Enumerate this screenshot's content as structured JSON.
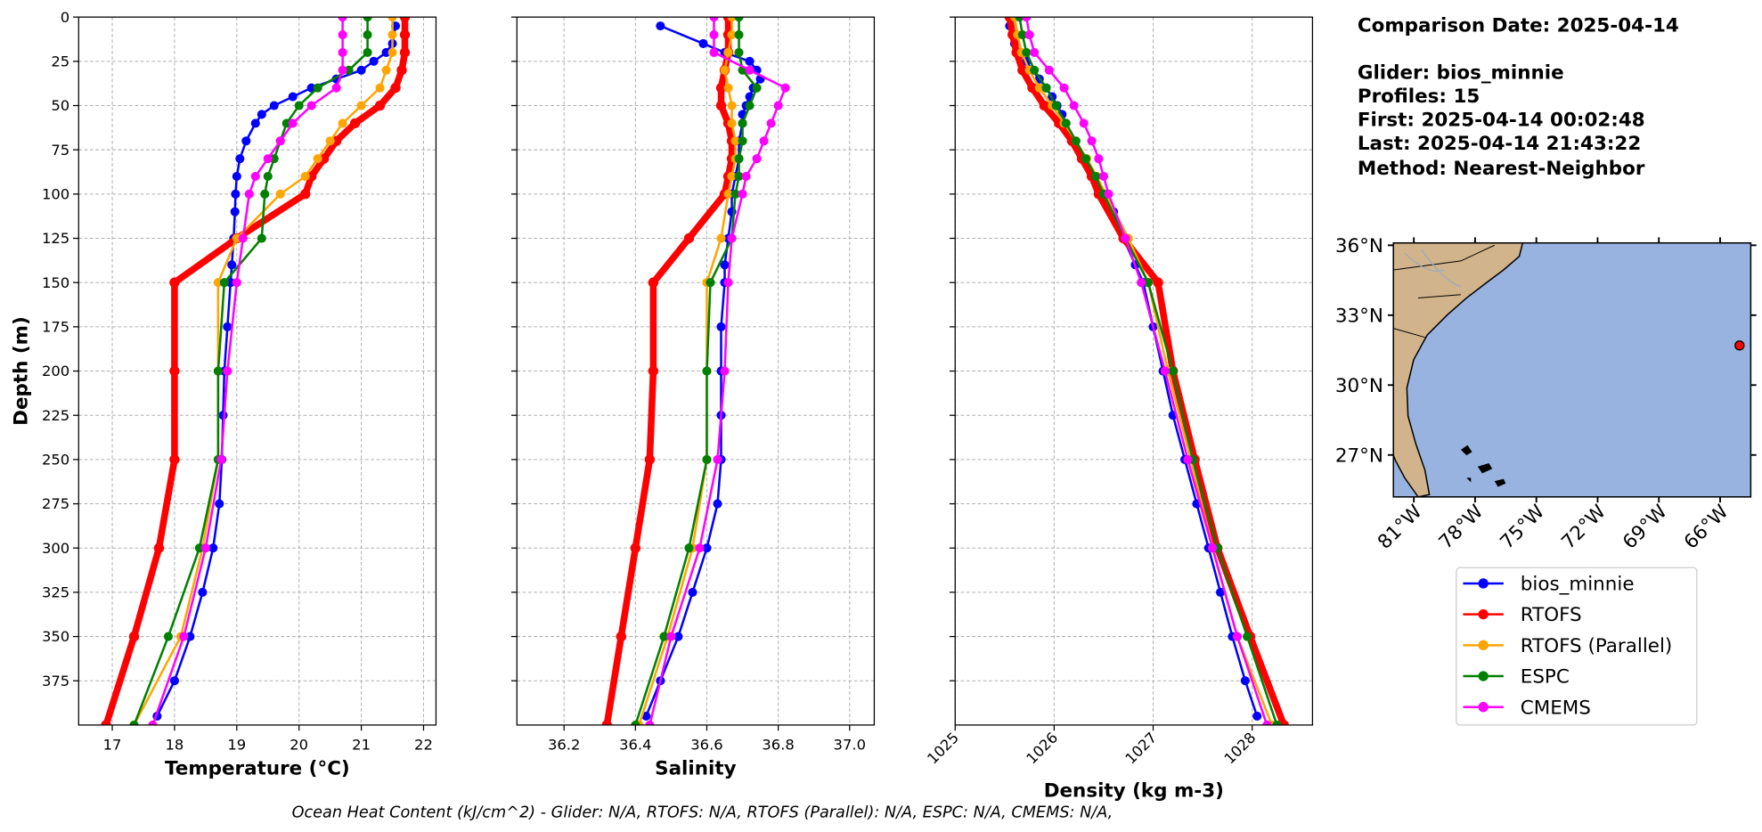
{
  "info": {
    "lines": [
      "Comparison Date: 2025-04-14",
      "Glider: bios_minnie",
      "Profiles: 15",
      "First: 2025-04-14 00:02:48",
      "Last: 2025-04-14 21:43:22",
      "Method: Nearest-Neighbor"
    ]
  },
  "footer": "Ocean Heat Content (kJ/cm^2) - Glider: N/A,  RTOFS: N/A,  RTOFS (Parallel): N/A,  ESPC: N/A,  CMEMS: N/A,",
  "series_styles": [
    {
      "name": "bios_minnie",
      "color": "#0000ff",
      "line_width": 2
    },
    {
      "name": "RTOFS",
      "color": "#ff0000",
      "line_width": 6
    },
    {
      "name": "RTOFS (Parallel)",
      "color": "#ffa500",
      "line_width": 2
    },
    {
      "name": "ESPC",
      "color": "#008000",
      "line_width": 2
    },
    {
      "name": "CMEMS",
      "color": "#ff00ff",
      "line_width": 2
    }
  ],
  "chart_data": [
    {
      "type": "line",
      "xlabel": "Temperature (°C)",
      "ylabel": "Depth (m)",
      "xlim": [
        16.46,
        22.2
      ],
      "ylim": [
        400,
        0
      ],
      "xticks": [
        17,
        18,
        19,
        20,
        21,
        22
      ],
      "yticks": [
        0,
        25,
        50,
        75,
        100,
        125,
        150,
        175,
        200,
        225,
        250,
        275,
        300,
        325,
        350,
        375
      ],
      "grid": true,
      "series": [
        {
          "y": [
            5,
            15,
            20,
            25,
            30,
            35,
            40,
            45,
            50,
            55,
            60,
            70,
            80,
            90,
            100,
            110,
            125,
            140,
            150,
            175,
            200,
            225,
            250,
            275,
            300,
            325,
            350,
            375,
            395
          ],
          "values": [
            21.55,
            21.5,
            21.4,
            21.2,
            21.0,
            20.6,
            20.2,
            19.9,
            19.6,
            19.4,
            19.3,
            19.15,
            19.05,
            19.0,
            18.98,
            18.97,
            18.95,
            18.92,
            18.9,
            18.85,
            18.8,
            18.78,
            18.76,
            18.72,
            18.62,
            18.45,
            18.25,
            18.0,
            17.72
          ]
        },
        {
          "y": [
            0,
            10,
            20,
            30,
            40,
            50,
            60,
            70,
            80,
            90,
            100,
            125,
            150,
            200,
            250,
            300,
            350,
            400
          ],
          "values": [
            21.7,
            21.7,
            21.7,
            21.65,
            21.55,
            21.3,
            20.9,
            20.6,
            20.4,
            20.2,
            20.1,
            19.0,
            18.0,
            18.0,
            18.0,
            17.75,
            17.35,
            16.9
          ]
        },
        {
          "y": [
            0,
            10,
            20,
            30,
            40,
            50,
            60,
            70,
            80,
            90,
            100,
            125,
            150,
            200,
            250,
            300,
            350,
            400
          ],
          "values": [
            21.5,
            21.5,
            21.5,
            21.4,
            21.3,
            21.0,
            20.7,
            20.5,
            20.3,
            20.1,
            19.7,
            19.0,
            18.7,
            18.7,
            18.7,
            18.45,
            18.1,
            17.35
          ]
        },
        {
          "y": [
            0,
            10,
            20,
            30,
            40,
            50,
            60,
            70,
            80,
            90,
            100,
            125,
            150,
            200,
            250,
            300,
            350,
            400
          ],
          "values": [
            21.1,
            21.1,
            21.1,
            20.8,
            20.3,
            20.0,
            19.8,
            19.7,
            19.6,
            19.5,
            19.45,
            19.4,
            18.8,
            18.7,
            18.7,
            18.4,
            17.9,
            17.35
          ]
        },
        {
          "y": [
            0,
            10,
            20,
            30,
            40,
            50,
            60,
            70,
            80,
            90,
            100,
            125,
            150,
            200,
            250,
            300,
            350,
            400
          ],
          "values": [
            20.7,
            20.7,
            20.7,
            20.7,
            20.6,
            20.2,
            19.9,
            19.7,
            19.5,
            19.3,
            19.2,
            19.1,
            19.0,
            18.85,
            18.75,
            18.5,
            18.15,
            17.65
          ]
        }
      ]
    },
    {
      "type": "line",
      "xlabel": "Salinity",
      "xlim": [
        36.068,
        37.069
      ],
      "ylim": [
        400,
        0
      ],
      "xticks": [
        36.2,
        36.4,
        36.6,
        36.8,
        {
          "value": 37,
          "label": "37.0"
        }
      ],
      "yticks": [
        0,
        25,
        50,
        75,
        100,
        125,
        150,
        175,
        200,
        225,
        250,
        275,
        300,
        325,
        350,
        375
      ],
      "grid": true,
      "series": [
        {
          "y": [
            5,
            15,
            20,
            25,
            30,
            35,
            40,
            45,
            50,
            55,
            60,
            70,
            80,
            90,
            100,
            110,
            125,
            140,
            150,
            175,
            200,
            225,
            250,
            275,
            300,
            325,
            350,
            375,
            395
          ],
          "values": [
            36.47,
            36.59,
            36.65,
            36.72,
            36.74,
            36.75,
            36.73,
            36.72,
            36.71,
            36.7,
            36.7,
            36.69,
            36.69,
            36.68,
            36.67,
            36.67,
            36.66,
            36.65,
            36.65,
            36.64,
            36.64,
            36.64,
            36.64,
            36.63,
            36.6,
            36.56,
            36.52,
            36.47,
            36.43
          ]
        },
        {
          "y": [
            0,
            10,
            20,
            30,
            40,
            50,
            60,
            70,
            80,
            90,
            100,
            125,
            150,
            200,
            250,
            300,
            350,
            400
          ],
          "values": [
            36.66,
            36.66,
            36.66,
            36.65,
            36.64,
            36.64,
            36.66,
            36.67,
            36.67,
            36.66,
            36.65,
            36.55,
            36.45,
            36.45,
            36.44,
            36.4,
            36.36,
            36.32
          ]
        },
        {
          "y": [
            0,
            10,
            20,
            30,
            40,
            50,
            60,
            70,
            80,
            90,
            100,
            125,
            150,
            200,
            250,
            300,
            350,
            400
          ],
          "values": [
            36.67,
            36.67,
            36.66,
            36.65,
            36.66,
            36.67,
            36.67,
            36.68,
            36.68,
            36.67,
            36.66,
            36.64,
            36.6,
            36.6,
            36.6,
            36.56,
            36.49,
            36.41
          ]
        },
        {
          "y": [
            0,
            10,
            20,
            30,
            40,
            50,
            60,
            70,
            80,
            90,
            100,
            125,
            150,
            200,
            250,
            300,
            350,
            400
          ],
          "values": [
            36.69,
            36.69,
            36.69,
            36.7,
            36.74,
            36.72,
            36.7,
            36.7,
            36.69,
            36.69,
            36.68,
            36.67,
            36.61,
            36.6,
            36.6,
            36.55,
            36.48,
            36.4
          ]
        },
        {
          "y": [
            0,
            10,
            20,
            30,
            40,
            50,
            60,
            70,
            80,
            90,
            100,
            125,
            150,
            200,
            250,
            300,
            350,
            400
          ],
          "values": [
            36.62,
            36.62,
            36.62,
            36.72,
            36.82,
            36.8,
            36.78,
            36.76,
            36.74,
            36.71,
            36.7,
            36.67,
            36.66,
            36.65,
            36.63,
            36.58,
            36.5,
            36.44
          ]
        }
      ]
    },
    {
      "type": "line",
      "xlabel": "Density (kg m-3)",
      "xlim": [
        1025,
        1028.61
      ],
      "ylim": [
        400,
        0
      ],
      "xticks": [
        1025,
        1026,
        1027,
        1028
      ],
      "xtick_rotation": 45,
      "yticks": [
        0,
        25,
        50,
        75,
        100,
        125,
        150,
        175,
        200,
        225,
        250,
        275,
        300,
        325,
        350,
        375
      ],
      "grid": true,
      "series": [
        {
          "y": [
            5,
            15,
            20,
            25,
            30,
            35,
            40,
            45,
            50,
            55,
            60,
            70,
            80,
            90,
            100,
            110,
            125,
            140,
            150,
            175,
            200,
            225,
            250,
            275,
            300,
            325,
            350,
            375,
            395
          ],
          "values": [
            1025.55,
            1025.6,
            1025.65,
            1025.72,
            1025.78,
            1025.85,
            1025.92,
            1025.98,
            1026.03,
            1026.08,
            1026.12,
            1026.2,
            1026.3,
            1026.4,
            1026.5,
            1026.6,
            1026.7,
            1026.82,
            1026.9,
            1027.0,
            1027.1,
            1027.2,
            1027.32,
            1027.44,
            1027.56,
            1027.68,
            1027.8,
            1027.93,
            1028.05
          ]
        },
        {
          "y": [
            0,
            10,
            20,
            30,
            40,
            50,
            60,
            70,
            80,
            90,
            100,
            125,
            150,
            200,
            250,
            300,
            350,
            400
          ],
          "values": [
            1025.55,
            1025.58,
            1025.62,
            1025.68,
            1025.78,
            1025.9,
            1026.05,
            1026.18,
            1026.28,
            1026.38,
            1026.45,
            1026.7,
            1027.05,
            1027.2,
            1027.42,
            1027.65,
            1027.98,
            1028.32
          ]
        },
        {
          "y": [
            0,
            10,
            20,
            30,
            40,
            50,
            60,
            70,
            80,
            90,
            100,
            125,
            150,
            200,
            250,
            300,
            350,
            400
          ],
          "values": [
            1025.6,
            1025.63,
            1025.67,
            1025.75,
            1025.85,
            1025.98,
            1026.1,
            1026.22,
            1026.33,
            1026.43,
            1026.52,
            1026.75,
            1026.95,
            1027.15,
            1027.38,
            1027.6,
            1027.85,
            1028.2
          ]
        },
        {
          "y": [
            0,
            10,
            20,
            30,
            40,
            50,
            60,
            70,
            80,
            90,
            100,
            125,
            150,
            200,
            250,
            300,
            350,
            400
          ],
          "values": [
            1025.65,
            1025.68,
            1025.72,
            1025.8,
            1025.92,
            1026.02,
            1026.12,
            1026.22,
            1026.32,
            1026.42,
            1026.5,
            1026.72,
            1026.95,
            1027.2,
            1027.4,
            1027.65,
            1027.95,
            1028.25
          ]
        },
        {
          "y": [
            0,
            10,
            20,
            30,
            40,
            50,
            60,
            70,
            80,
            90,
            100,
            125,
            150,
            200,
            250,
            300,
            350,
            400
          ],
          "values": [
            1025.72,
            1025.75,
            1025.8,
            1025.95,
            1026.1,
            1026.2,
            1026.3,
            1026.38,
            1026.45,
            1026.5,
            1026.55,
            1026.72,
            1026.88,
            1027.12,
            1027.35,
            1027.6,
            1027.85,
            1028.15
          ]
        }
      ]
    },
    {
      "type": "map",
      "xlim": [
        -82,
        -64.5
      ],
      "ylim": [
        25.2,
        36.1
      ],
      "xticks": [
        {
          "value": -81,
          "label": "81°W"
        },
        {
          "value": -78,
          "label": "78°W"
        },
        {
          "value": -75,
          "label": "75°W"
        },
        {
          "value": -72,
          "label": "72°W"
        },
        {
          "value": -69,
          "label": "69°W"
        },
        {
          "value": -66,
          "label": "66°W"
        }
      ],
      "yticks": [
        {
          "value": 36,
          "label": "36°N"
        },
        {
          "value": 33,
          "label": "33°N"
        },
        {
          "value": 30,
          "label": "30°N"
        },
        {
          "value": 27,
          "label": "27°N"
        }
      ],
      "point": {
        "x": -65.05,
        "y": 31.7,
        "color": "#ff0000"
      }
    }
  ]
}
